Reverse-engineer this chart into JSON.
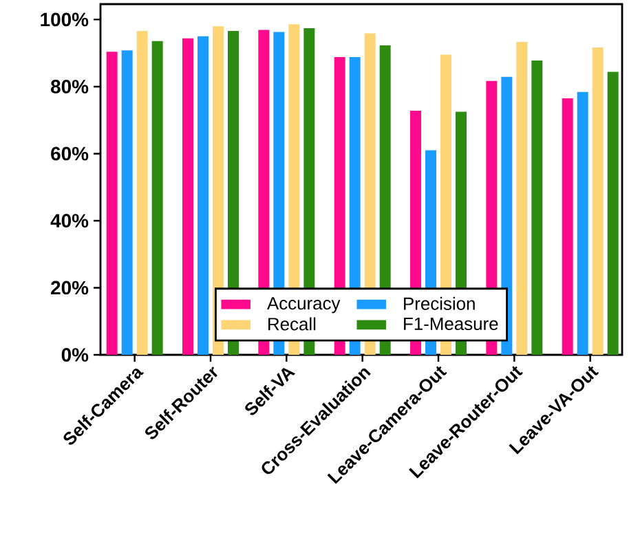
{
  "chart_data": {
    "type": "bar",
    "categories": [
      "Self-Camera",
      "Self-Router",
      "Self-VA",
      "Cross-Evaluation",
      "Leave-Camera-Out",
      "Leave-Router-Out",
      "Leave-VA-Out"
    ],
    "series": [
      {
        "name": "Accuracy",
        "color": "#ff0a8c",
        "values": [
          90.4,
          94.4,
          96.9,
          88.8,
          72.8,
          81.7,
          76.5
        ]
      },
      {
        "name": "Precision",
        "color": "#1a9bff",
        "values": [
          90.8,
          95.0,
          96.3,
          88.8,
          61.0,
          82.9,
          78.4
        ]
      },
      {
        "name": "Recall",
        "color": "#ffd475",
        "values": [
          96.6,
          98.0,
          98.6,
          95.9,
          89.5,
          93.3,
          91.7
        ]
      },
      {
        "name": "F1-Measure",
        "color": "#2e8b12",
        "values": [
          93.6,
          96.6,
          97.4,
          92.3,
          72.5,
          87.8,
          84.4
        ]
      }
    ],
    "ylim": [
      0,
      104.6
    ],
    "yticks": [
      {
        "value": 0,
        "label": "0%"
      },
      {
        "value": 20,
        "label": "20%"
      },
      {
        "value": 40,
        "label": "40%"
      },
      {
        "value": 60,
        "label": "60%"
      },
      {
        "value": 80,
        "label": "80%"
      },
      {
        "value": 100,
        "label": "100%"
      }
    ],
    "legend": "bottom"
  }
}
